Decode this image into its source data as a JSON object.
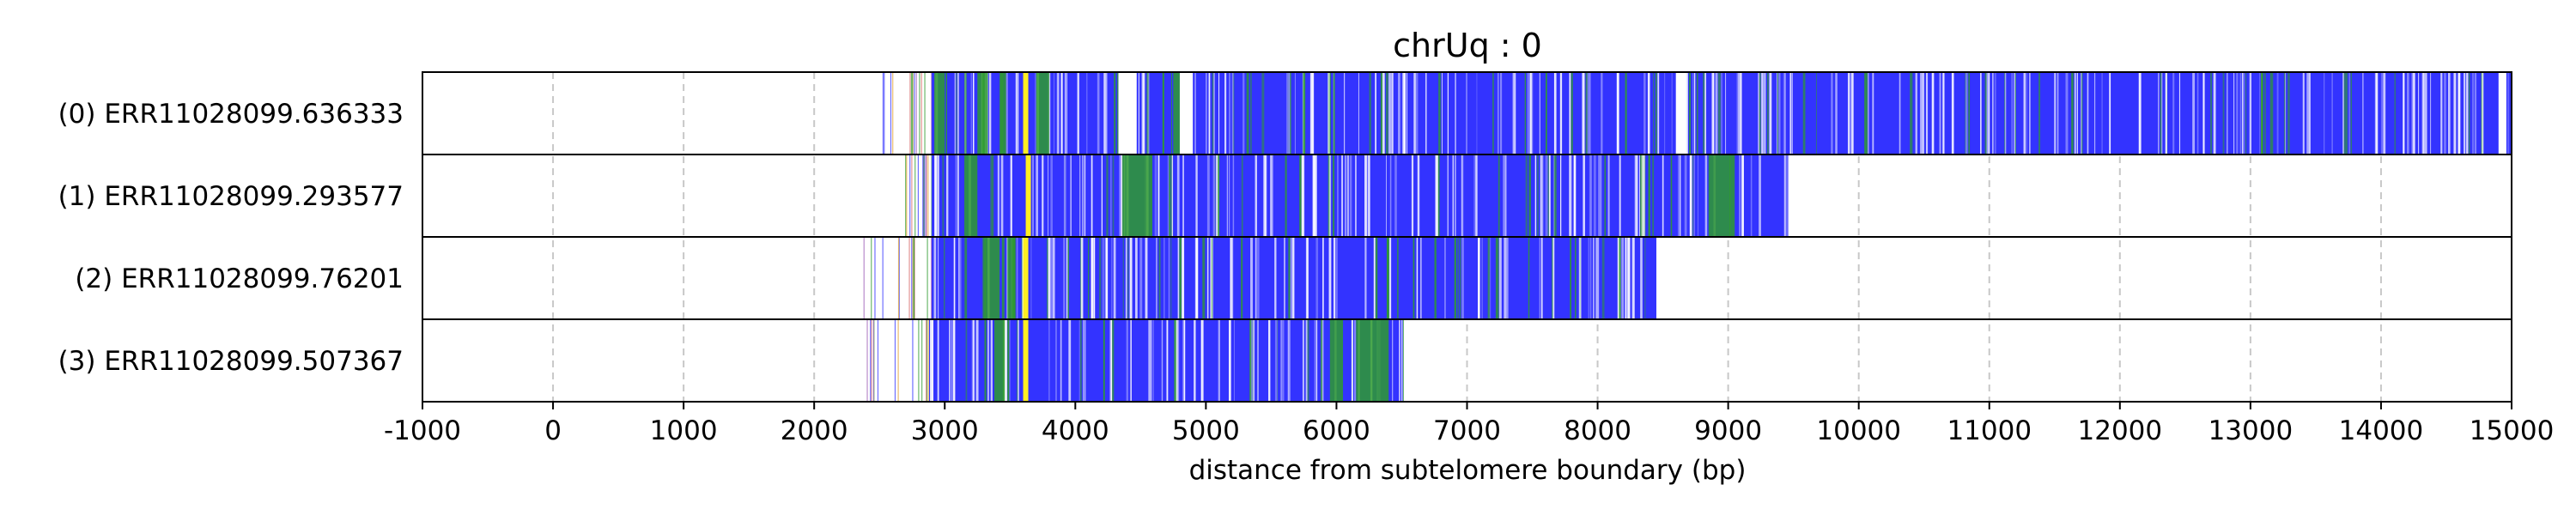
{
  "chart_data": {
    "type": "heatmap",
    "title": "chrUq : 0",
    "xlabel": "distance from subtelomere boundary (bp)",
    "ylabel": "",
    "xlim": [
      -1000,
      15000
    ],
    "xticks": [
      "-1000",
      "0",
      "1000",
      "2000",
      "3000",
      "4000",
      "5000",
      "6000",
      "7000",
      "8000",
      "9000",
      "10000",
      "11000",
      "12000",
      "13000",
      "14000",
      "15000"
    ],
    "grid": "vertical dashed gridlines at x ticks",
    "colors": {
      "main": "#3333ff",
      "alt": "#2e9b2e",
      "marker": "#ffee22",
      "grid": "#c8c8c8"
    },
    "reads": [
      {
        "label": "(0) ERR11028099.636333",
        "start": 2900,
        "end": 15000,
        "sparse_start": 2450,
        "marker_at": 3620,
        "green_segments": [
          [
            2920,
            3000
          ],
          [
            3250,
            3330
          ],
          [
            3420,
            3470
          ],
          [
            3700,
            3800
          ],
          [
            4750,
            4850
          ]
        ],
        "gaps": [
          [
            4330,
            4470
          ],
          [
            4800,
            4900
          ],
          [
            8600,
            8680
          ],
          [
            14900,
            14960
          ]
        ]
      },
      {
        "label": "(1) ERR11028099.293577",
        "start": 2900,
        "end": 9460,
        "sparse_start": 2700,
        "marker_at": 3640,
        "green_segments": [
          [
            3150,
            3250
          ],
          [
            4360,
            4590
          ],
          [
            8850,
            9050
          ]
        ],
        "gaps": []
      },
      {
        "label": "(2) ERR11028099.76201",
        "start": 2900,
        "end": 8450,
        "sparse_start": 2350,
        "marker_at": 3620,
        "green_segments": [
          [
            3300,
            3420
          ],
          [
            3480,
            3540
          ]
        ],
        "gaps": []
      },
      {
        "label": "(3) ERR11028099.507367",
        "start": 2880,
        "end": 6510,
        "sparse_start": 2350,
        "marker_at": 3620,
        "green_segments": [
          [
            3380,
            3460
          ],
          [
            5950,
            6050
          ],
          [
            6150,
            6400
          ]
        ],
        "gaps": []
      }
    ]
  }
}
